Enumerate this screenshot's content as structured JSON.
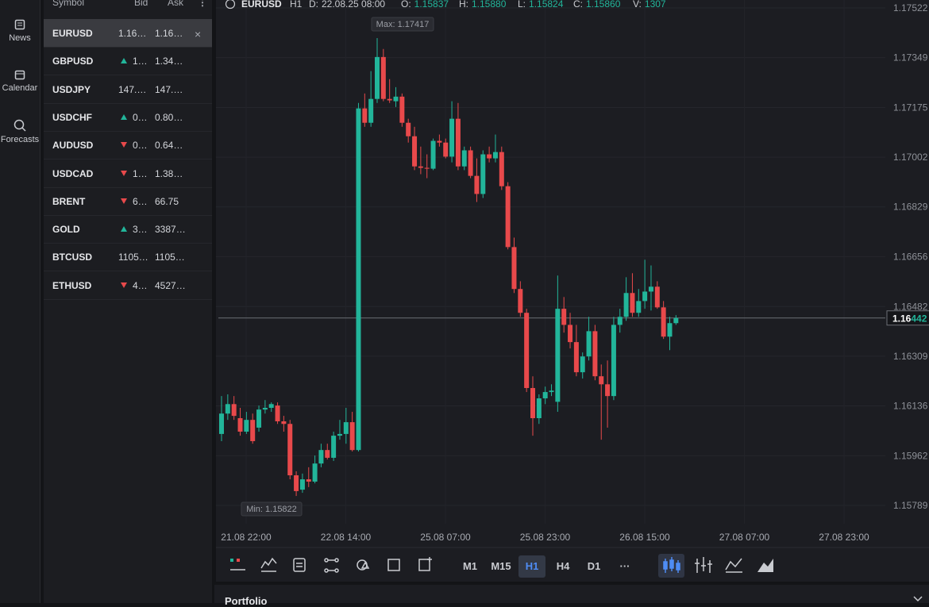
{
  "sidebar": {
    "nav": [
      "News",
      "Calendar",
      "Forecasts"
    ]
  },
  "watchlist": {
    "headers": [
      "Symbol",
      "Bid",
      "Ask"
    ],
    "selected_row": 0,
    "rows": [
      {
        "symbol": "EURUSD",
        "bid": "1.16…",
        "ask": "1.16…"
      },
      {
        "symbol": "GBPUSD",
        "direction": "up",
        "bid": "1…",
        "ask": "1.34…"
      },
      {
        "symbol": "USDJPY",
        "bid": "147.…",
        "ask": "147.…"
      },
      {
        "symbol": "USDCHF",
        "direction": "up",
        "bid": "0…",
        "ask": "0.80…"
      },
      {
        "symbol": "AUDUSD",
        "direction": "down",
        "bid": "0…",
        "ask": "0.64…"
      },
      {
        "symbol": "USDCAD",
        "direction": "down",
        "bid": "1…",
        "ask": "1.38…"
      },
      {
        "symbol": "BRENT",
        "direction": "down",
        "bid": "6…",
        "ask": "66.75"
      },
      {
        "symbol": "GOLD",
        "direction": "up",
        "bid": "3…",
        "ask": "3387…"
      },
      {
        "symbol": "BTCUSD",
        "bid": "1105…",
        "ask": "1105…"
      },
      {
        "symbol": "ETHUSD",
        "direction": "down",
        "bid": "4…",
        "ask": "4527…"
      }
    ]
  },
  "chart": {
    "type": "candlestick",
    "symbol": "EURUSD",
    "timeframe": "H1",
    "stats": [
      {
        "label": "D:",
        "value": "22.08.25 08:00"
      },
      {
        "label": "O:",
        "value": "1.15837"
      },
      {
        "label": "H:",
        "value": "1.15880"
      },
      {
        "label": "L:",
        "value": "1.15824"
      },
      {
        "label": "C:",
        "value": "1.15860"
      },
      {
        "label": "V:",
        "value": "1307"
      }
    ],
    "up_color": "#22b59a",
    "down_color": "#e8494b",
    "ylim": [
      1.15789,
      1.17522
    ],
    "yticks": [
      1.17522,
      1.17349,
      1.17175,
      1.17002,
      1.16829,
      1.16656,
      1.16482,
      1.16309,
      1.16136,
      1.15962,
      1.15789
    ],
    "x_labels": [
      "21.08 22:00",
      "22.08 14:00",
      "25.08 07:00",
      "25.08 23:00",
      "26.08 15:00",
      "27.08 07:00",
      "27.08 23:00"
    ],
    "max_label": "Max: 1.17417",
    "min_label": "Min: 1.15822",
    "last_price": 1.16442,
    "candles": [
      [
        1.16038,
        1.1617,
        1.16013,
        1.16109
      ],
      [
        1.16109,
        1.16176,
        1.16087,
        1.16142
      ],
      [
        1.16142,
        1.1617,
        1.16087,
        1.16101
      ],
      [
        1.16093,
        1.16129,
        1.16032,
        1.16046
      ],
      [
        1.16046,
        1.16115,
        1.16038,
        1.16087
      ],
      [
        1.16087,
        1.16109,
        1.16004,
        1.16013
      ],
      [
        1.1606,
        1.16137,
        1.16046,
        1.16123
      ],
      [
        1.16123,
        1.16156,
        1.16109,
        1.16129
      ],
      [
        1.16129,
        1.16148,
        1.16115,
        1.16142
      ],
      [
        1.16137,
        1.16148,
        1.16073,
        1.16082
      ],
      [
        1.16082,
        1.16101,
        1.16046,
        1.16073
      ],
      [
        1.16073,
        1.16087,
        1.1588,
        1.15894
      ],
      [
        1.15894,
        1.15908,
        1.15822,
        1.15839
      ],
      [
        1.15844,
        1.159,
        1.15833,
        1.1588
      ],
      [
        1.1588,
        1.15922,
        1.15853,
        1.15872
      ],
      [
        1.15872,
        1.15963,
        1.15866,
        1.15935
      ],
      [
        1.15935,
        1.16004,
        1.15922,
        1.15982
      ],
      [
        1.15982,
        1.16004,
        1.15949,
        1.15955
      ],
      [
        1.15955,
        1.16046,
        1.15944,
        1.16032
      ],
      [
        1.16032,
        1.16087,
        1.16018,
        1.16038
      ],
      [
        1.16038,
        1.16129,
        1.16004,
        1.16079
      ],
      [
        1.16079,
        1.16115,
        1.15977,
        1.15982
      ],
      [
        1.15982,
        1.17191,
        1.15977,
        1.17172
      ],
      [
        1.17172,
        1.17224,
        1.17108,
        1.17122
      ],
      [
        1.17122,
        1.17302,
        1.17108,
        1.17205
      ],
      [
        1.17205,
        1.17417,
        1.17191,
        1.17351
      ],
      [
        1.17351,
        1.17379,
        1.17197,
        1.17205
      ],
      [
        1.17205,
        1.17274,
        1.17191,
        1.172
      ],
      [
        1.17197,
        1.17246,
        1.17177,
        1.17213
      ],
      [
        1.17213,
        1.17224,
        1.17108,
        1.17122
      ],
      [
        1.17122,
        1.17136,
        1.17053,
        1.17075
      ],
      [
        1.17075,
        1.17108,
        1.16957,
        1.1697
      ],
      [
        1.1697,
        1.17039,
        1.16943,
        1.16965
      ],
      [
        1.16965,
        1.17012,
        1.16929,
        1.16962
      ],
      [
        1.16962,
        1.17067,
        1.16957,
        1.17059
      ],
      [
        1.17059,
        1.17081,
        1.17039,
        1.17053
      ],
      [
        1.17053,
        1.17067,
        1.16998,
        1.17004
      ],
      [
        1.17004,
        1.17197,
        1.16984,
        1.17136
      ],
      [
        1.17136,
        1.17191,
        1.16957,
        1.1697
      ],
      [
        1.1697,
        1.17039,
        1.16957,
        1.17026
      ],
      [
        1.17026,
        1.17039,
        1.16929,
        1.16937
      ],
      [
        1.16937,
        1.16998,
        1.16846,
        1.16874
      ],
      [
        1.16874,
        1.17026,
        1.1686,
        1.17012
      ],
      [
        1.17012,
        1.17039,
        1.16984,
        1.16998
      ],
      [
        1.16998,
        1.17081,
        1.16984,
        1.1702
      ],
      [
        1.1702,
        1.17039,
        1.16888,
        1.16901
      ],
      [
        1.16901,
        1.16915,
        1.16681,
        1.16689
      ],
      [
        1.16689,
        1.16722,
        1.16529,
        1.16543
      ],
      [
        1.16543,
        1.1657,
        1.16446,
        1.1646
      ],
      [
        1.1646,
        1.16474,
        1.16184,
        1.16198
      ],
      [
        1.16198,
        1.16239,
        1.16032,
        1.16093
      ],
      [
        1.16093,
        1.16176,
        1.16073,
        1.16162
      ],
      [
        1.16162,
        1.16203,
        1.16142,
        1.16184
      ],
      [
        1.16184,
        1.16211,
        1.1617,
        1.16189
      ],
      [
        1.1615,
        1.1659,
        1.16115,
        1.16474
      ],
      [
        1.16474,
        1.16515,
        1.16391,
        1.16418
      ],
      [
        1.16418,
        1.1646,
        1.16336,
        1.16358
      ],
      [
        1.16358,
        1.16418,
        1.16239,
        1.16253
      ],
      [
        1.16253,
        1.16322,
        1.16231,
        1.16308
      ],
      [
        1.16308,
        1.16446,
        1.16294,
        1.16396
      ],
      [
        1.16396,
        1.16418,
        1.16225,
        1.16239
      ],
      [
        1.16239,
        1.1628,
        1.16018,
        1.16211
      ],
      [
        1.16211,
        1.16294,
        1.1606,
        1.1617
      ],
      [
        1.1617,
        1.16446,
        1.16156,
        1.16418
      ],
      [
        1.16418,
        1.16474,
        1.16391,
        1.16446
      ],
      [
        1.16446,
        1.16584,
        1.16432,
        1.16529
      ],
      [
        1.16529,
        1.16598,
        1.16446,
        1.1646
      ],
      [
        1.1646,
        1.16543,
        1.16446,
        1.16501
      ],
      [
        1.16501,
        1.16645,
        1.16474,
        1.16534
      ],
      [
        1.16534,
        1.16625,
        1.16468,
        1.16551
      ],
      [
        1.16551,
        1.1657,
        1.16474,
        1.16479
      ],
      [
        1.16479,
        1.16501,
        1.16369,
        1.16377
      ],
      [
        1.16377,
        1.16446,
        1.1633,
        1.16424
      ],
      [
        1.16424,
        1.16452,
        1.16418,
        1.16442
      ]
    ]
  },
  "toolbar": {
    "timeframes": [
      "M1",
      "M15",
      "H1",
      "H4",
      "D1",
      "···"
    ],
    "active_timeframe": 2
  },
  "portfolio": {
    "title": "Portfolio"
  }
}
